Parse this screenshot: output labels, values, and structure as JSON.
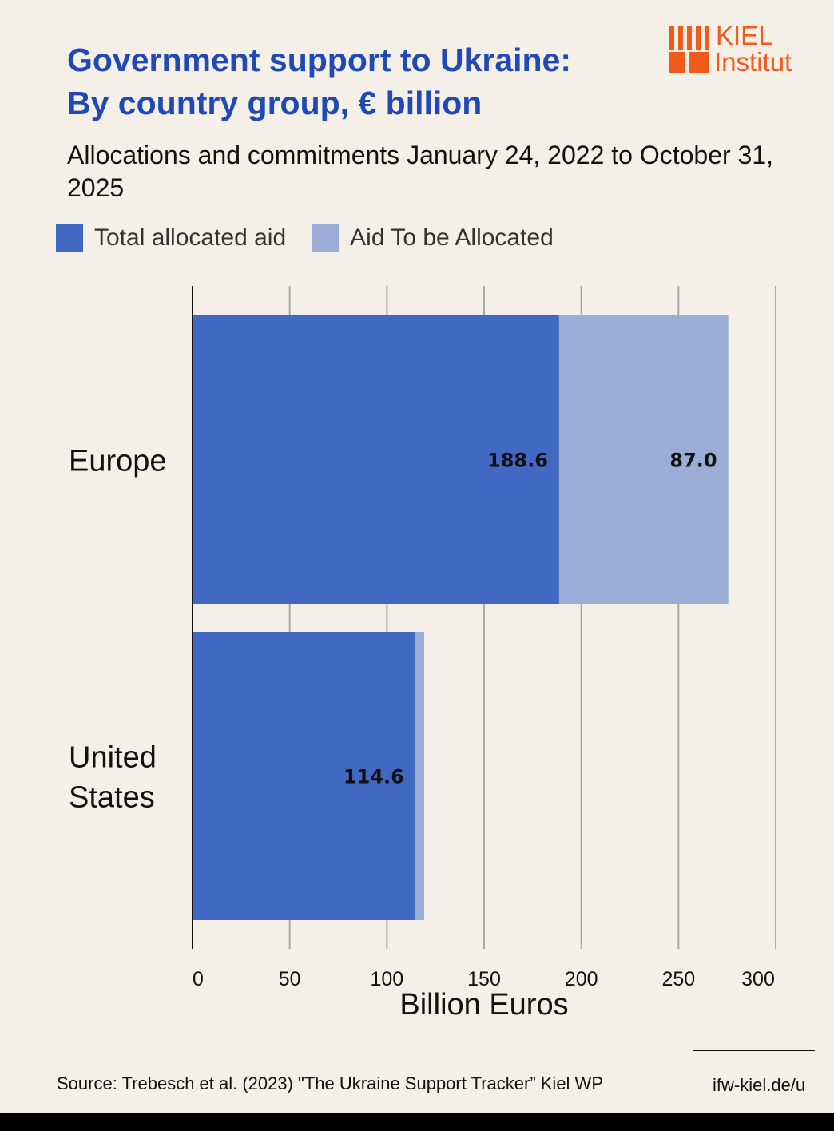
{
  "title_lines": [
    "Government support to Ukraine:",
    "By country group, € billion"
  ],
  "subtitle": "Allocations and commitments January 24, 2022 to October 31, 2025",
  "logo": {
    "line1": "KIEL",
    "line2": "Institut",
    "color": "#f05a1a"
  },
  "source": "Source: Trebesch et al. (2023) \"The Ukraine Support Tracker” Kiel WP",
  "url": "ifw-kiel.de/u",
  "chart_data": {
    "type": "bar",
    "orientation": "horizontal",
    "stacked": true,
    "categories": [
      "Europe",
      "United States"
    ],
    "category_labels": [
      [
        "Europe"
      ],
      [
        "United",
        "States"
      ]
    ],
    "series": [
      {
        "name": "Total allocated aid",
        "color": "#4169c4",
        "values": [
          188.6,
          114.6
        ],
        "labels": [
          "188.6",
          "114.6"
        ]
      },
      {
        "name": "Aid To be Allocated",
        "color": "#9badd6",
        "values": [
          87.0,
          4.6
        ],
        "labels": [
          "87.0",
          ""
        ]
      }
    ],
    "xlabel": "Billion Euros",
    "xlim": [
      0,
      300
    ],
    "xticks": [
      0,
      50,
      100,
      150,
      200,
      250,
      300
    ],
    "grid": true,
    "legend": "top-left"
  }
}
